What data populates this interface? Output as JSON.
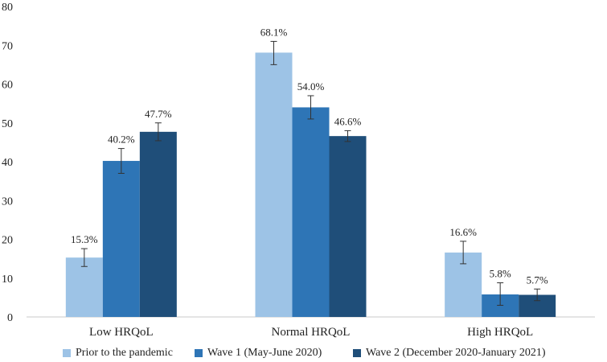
{
  "chart_data": {
    "type": "bar",
    "title": "",
    "xlabel": "",
    "ylabel": "",
    "ylim": [
      0,
      80
    ],
    "yticks": [
      0,
      10,
      20,
      30,
      40,
      50,
      60,
      70,
      80
    ],
    "categories": [
      "Low HRQoL",
      "Normal HRQoL",
      "High HRQoL"
    ],
    "legend_position": "bottom",
    "series": [
      {
        "name": "Prior to the pandemic",
        "color": "#9dc3e6",
        "values": [
          15.3,
          68.1,
          16.6
        ],
        "labels": [
          "15.3%",
          "68.1%",
          "16.6%"
        ],
        "error_low": [
          13.0,
          65.0,
          13.7
        ],
        "error_high": [
          17.6,
          71.0,
          19.5
        ]
      },
      {
        "name": "Wave 1 (May-June 2020)",
        "color": "#2e75b6",
        "values": [
          40.2,
          54.0,
          5.8
        ],
        "labels": [
          "40.2%",
          "54.0%",
          "5.8%"
        ],
        "error_low": [
          37.0,
          51.0,
          3.0
        ],
        "error_high": [
          43.4,
          57.0,
          8.8
        ]
      },
      {
        "name": "Wave 2 (December 2020-January 2021)",
        "color": "#1f4e79",
        "values": [
          47.7,
          46.6,
          5.7
        ],
        "labels": [
          "47.7%",
          "46.6%",
          "5.7%"
        ],
        "error_low": [
          45.4,
          45.2,
          4.2
        ],
        "error_high": [
          50.0,
          48.0,
          7.2
        ]
      }
    ]
  }
}
